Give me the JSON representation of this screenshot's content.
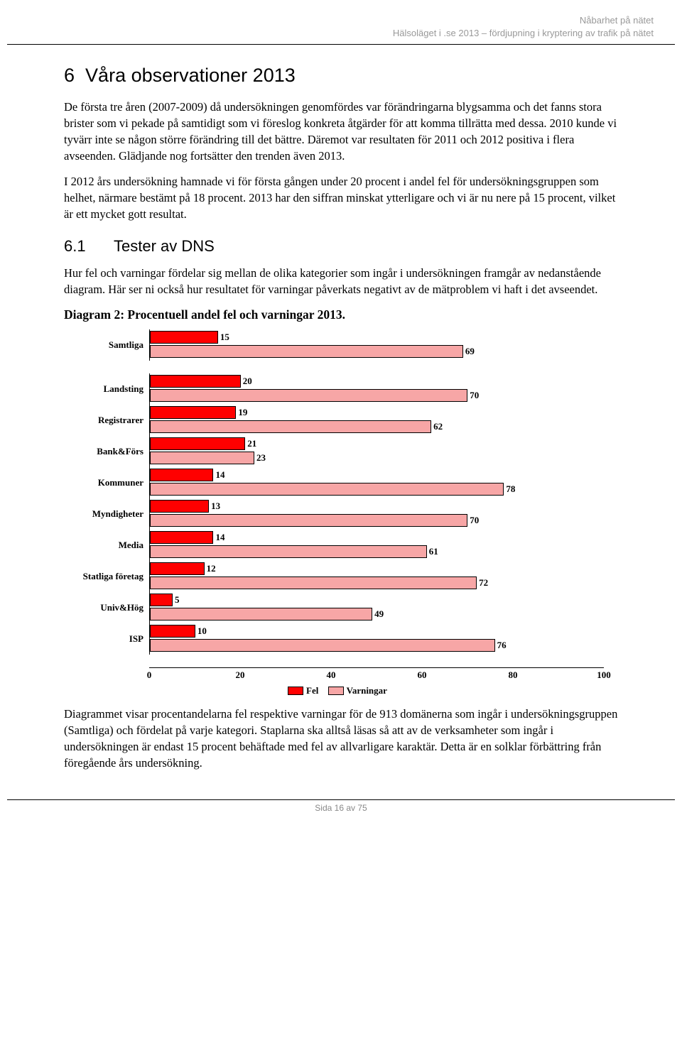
{
  "header": {
    "line1": "Nåbarhet på nätet",
    "line2": "Hälsoläget i .se 2013 – fördjupning i kryptering av trafik på nätet"
  },
  "section": {
    "number": "6",
    "title": "Våra observationer 2013",
    "p1": "De första tre åren (2007-2009) då undersökningen genomfördes var förändringarna blygsamma och det fanns stora brister som vi pekade på samtidigt som vi föreslog konkreta åtgärder för att komma tillrätta med dessa. 2010 kunde vi tyvärr inte se någon större förändring till det bättre. Däremot var resultaten för 2011 och 2012 positiva i flera avseenden. Glädjande nog fortsätter den trenden även 2013.",
    "p2": "I 2012 års undersökning hamnade vi för första gången under 20 procent i andel fel för undersökningsgruppen som helhet, närmare bestämt på 18 procent. 2013 har den siffran minskat ytterligare och vi är nu nere på 15 procent, vilket är ett mycket gott resultat."
  },
  "subsection": {
    "number": "6.1",
    "title": "Tester av DNS",
    "p1": "Hur fel och varningar fördelar sig mellan de olika kategorier som ingår i undersökningen framgår av nedanstående diagram. Här ser ni också hur resultatet för varningar påverkats negativt av de mätproblem vi haft i det avseendet.",
    "diagram_title": "Diagram 2: Procentuell andel fel och varningar 2013."
  },
  "chart": {
    "type": "bar",
    "xlim": [
      0,
      100
    ],
    "xtick_step": 20,
    "xticks": [
      "0",
      "20",
      "40",
      "60",
      "80",
      "100"
    ],
    "color_fel": "#ff0000",
    "color_varn": "#f7a6a6",
    "border_color": "#000000",
    "label_fontsize": 13,
    "legend": {
      "fel": "Fel",
      "varn": "Varningar"
    },
    "group1": [
      {
        "label": "Samtliga",
        "fel": 15,
        "varn": 69
      }
    ],
    "group2": [
      {
        "label": "Landsting",
        "fel": 20,
        "varn": 70
      },
      {
        "label": "Registrarer",
        "fel": 19,
        "varn": 62
      },
      {
        "label": "Bank&Förs",
        "fel": 21,
        "varn": 23
      },
      {
        "label": "Kommuner",
        "fel": 14,
        "varn": 78
      },
      {
        "label": "Myndigheter",
        "fel": 13,
        "varn": 70
      },
      {
        "label": "Media",
        "fel": 14,
        "varn": 61
      },
      {
        "label": "Statliga företag",
        "fel": 12,
        "varn": 72
      },
      {
        "label": "Univ&Hög",
        "fel": 5,
        "varn": 49
      },
      {
        "label": "ISP",
        "fel": 10,
        "varn": 76
      }
    ]
  },
  "after_text": "Diagrammet visar procentandelarna fel respektive varningar för de 913 domänerna som ingår i undersökningsgruppen (Samtliga) och fördelat på varje kategori. Staplarna ska alltså läsas så att av de verksamheter som ingår i undersökningen är endast 15 procent behäftade med fel av allvarligare karaktär. Detta är en solklar förbättring från föregående års undersökning.",
  "footer": {
    "text": "Sida 16 av 75"
  }
}
